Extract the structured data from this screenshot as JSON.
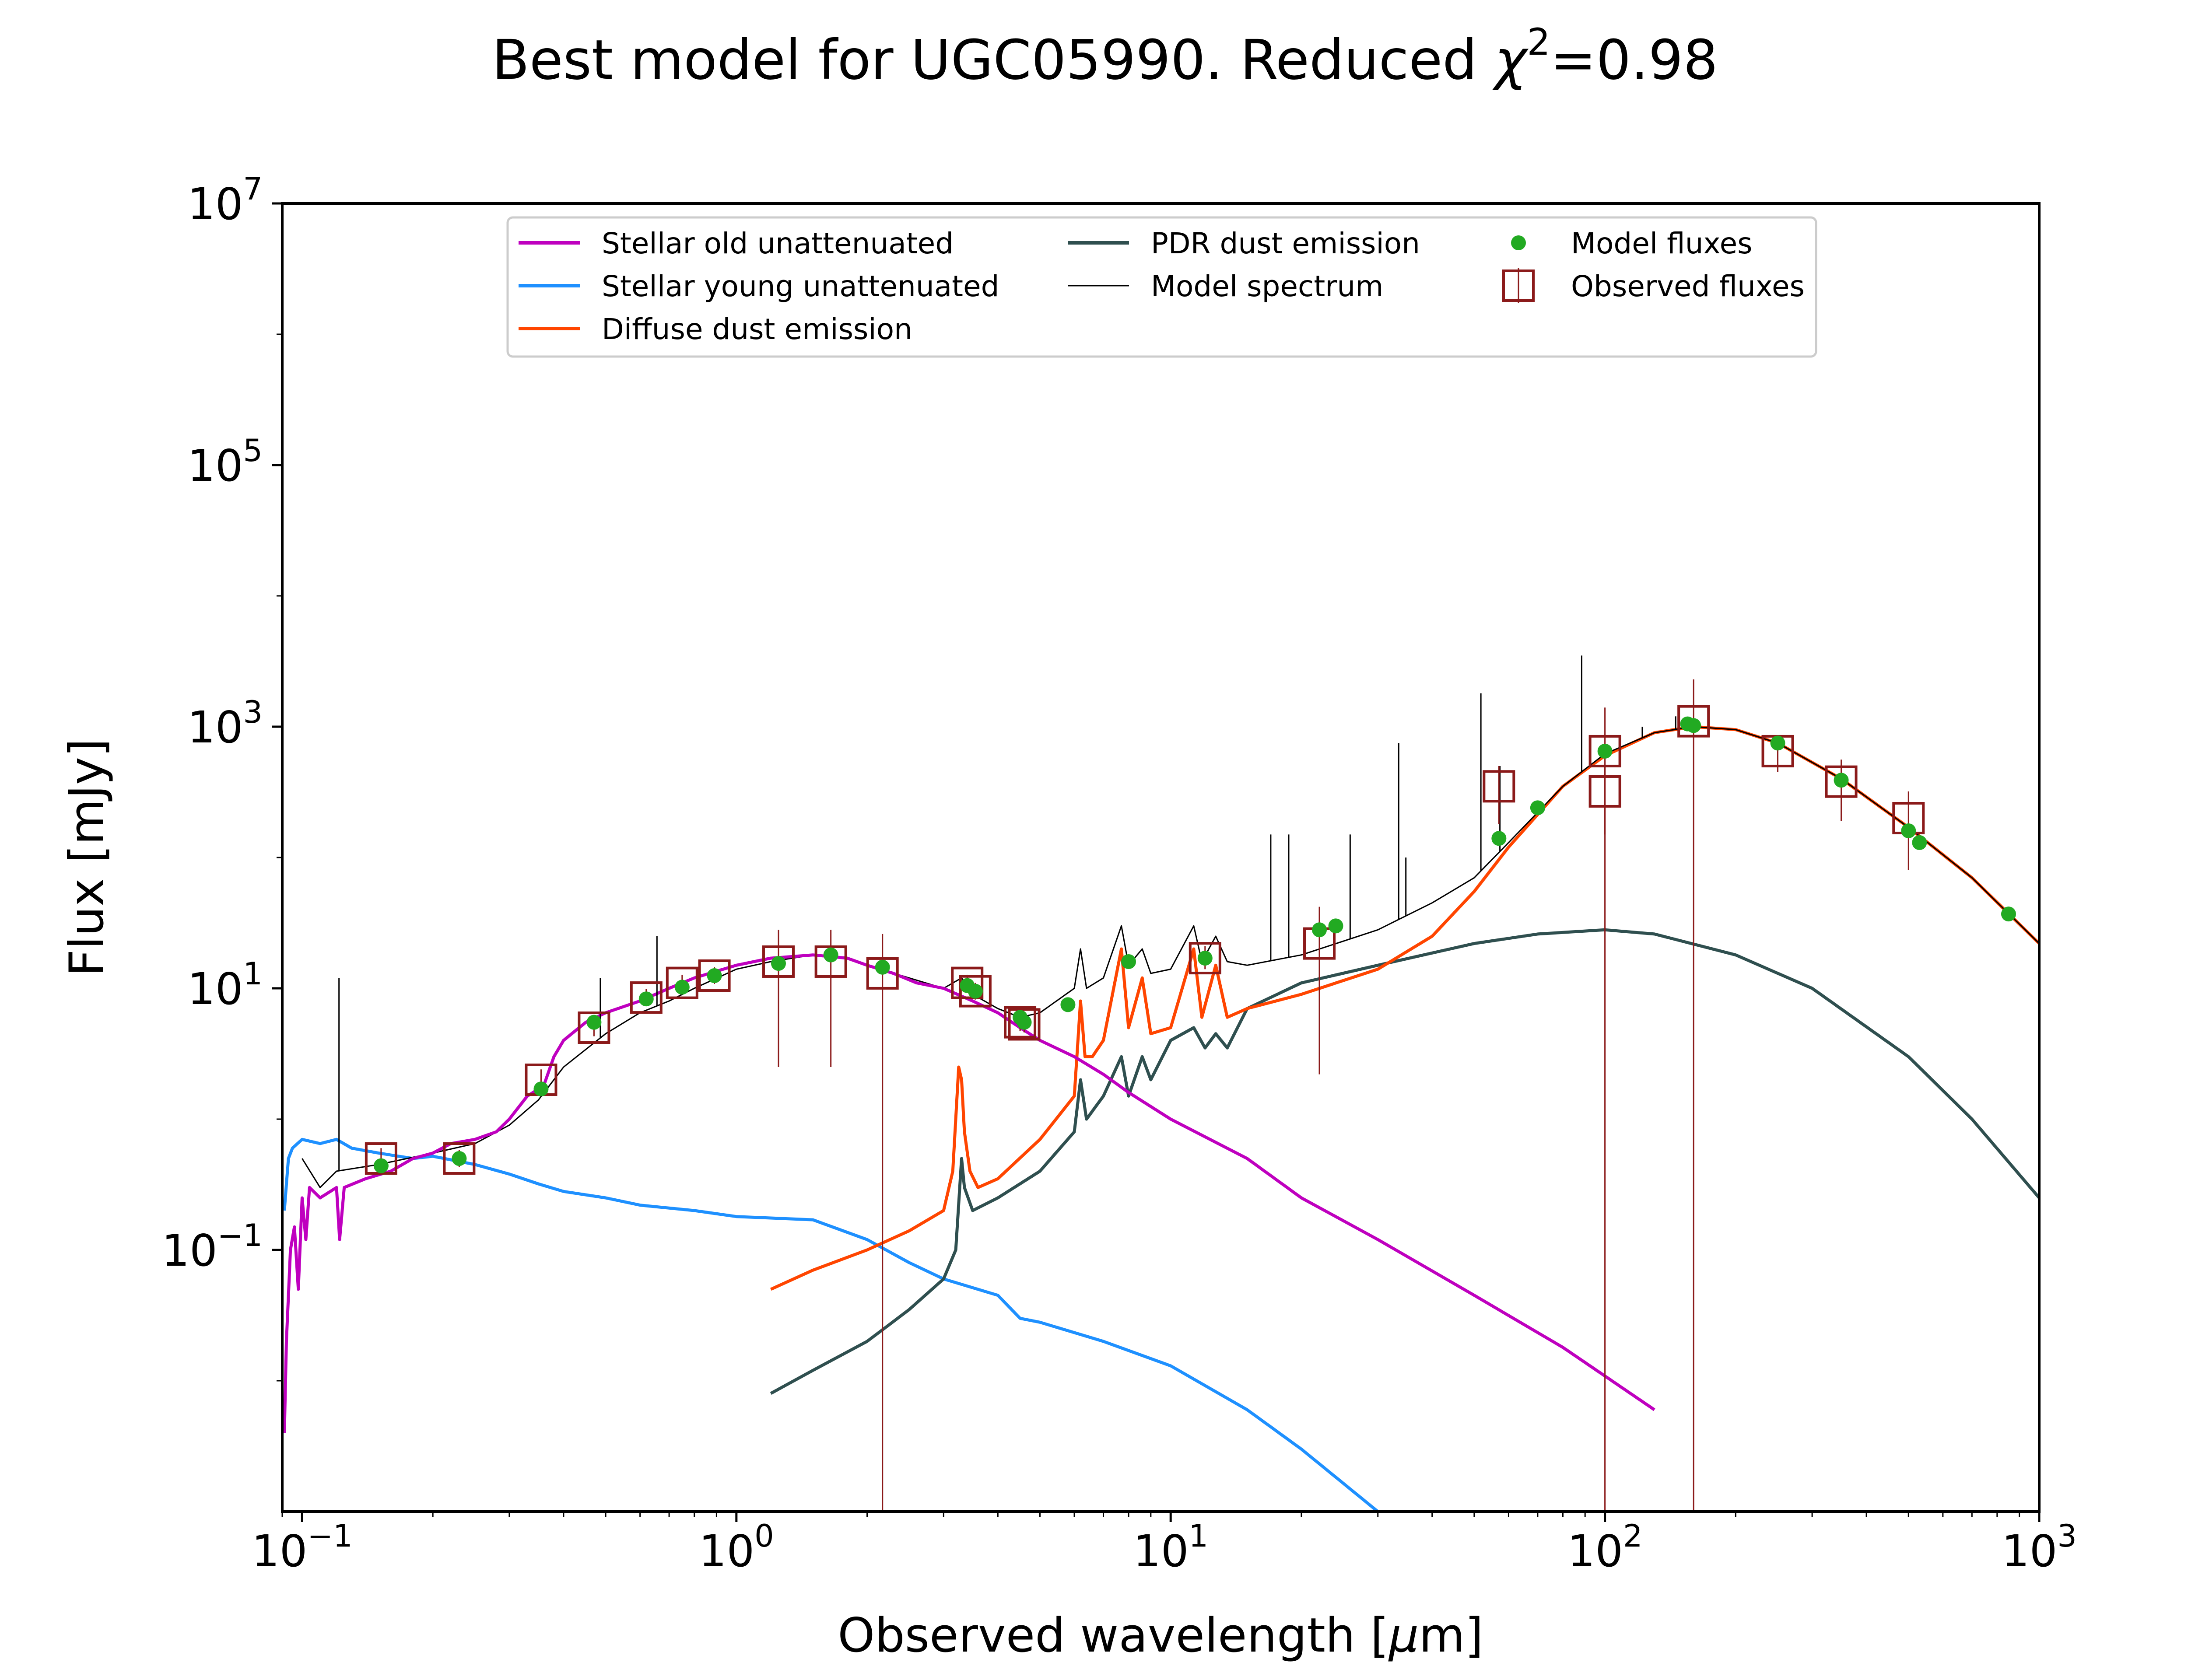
{
  "chart_data": {
    "type": "line",
    "title": "Best model for UGC05990. Reduced χ²=0.98",
    "title_main": "Best model for UGC05990. Reduced ",
    "title_chi": "χ",
    "title_sup": "2",
    "title_tail": "=0.98",
    "xlabel_pre": "Observed wavelength [",
    "xlabel_mu": "μ",
    "xlabel_post": "m]",
    "ylabel": "Flux [mJy]",
    "xscale": "log",
    "yscale": "log",
    "xlim": [
      0.09,
      1000
    ],
    "ylim": [
      0.001,
      10000000
    ],
    "grid": false,
    "legend_position": "top-center",
    "x_ticks": [
      {
        "value": 0.1,
        "base": "10",
        "exp": "−1"
      },
      {
        "value": 1,
        "base": "10",
        "exp": "0"
      },
      {
        "value": 10,
        "base": "10",
        "exp": "1"
      },
      {
        "value": 100,
        "base": "10",
        "exp": "2"
      },
      {
        "value": 1000,
        "base": "10",
        "exp": "3"
      }
    ],
    "y_ticks": [
      {
        "value": 0.1,
        "base": "10",
        "exp": "−1"
      },
      {
        "value": 10,
        "base": "10",
        "exp": "1"
      },
      {
        "value": 1000,
        "base": "10",
        "exp": "3"
      },
      {
        "value": 100000,
        "base": "10",
        "exp": "5"
      },
      {
        "value": 10000000,
        "base": "10",
        "exp": "7"
      }
    ],
    "legend": [
      {
        "label": "Stellar old unattenuated",
        "kind": "line",
        "color": "#bf00bf"
      },
      {
        "label": "Stellar young unattenuated",
        "kind": "line",
        "color": "#1e90ff"
      },
      {
        "label": "Diffuse dust emission",
        "kind": "line",
        "color": "#ff4500"
      },
      {
        "label": "PDR dust emission",
        "kind": "line",
        "color": "#2f4f4f"
      },
      {
        "label": "Model spectrum",
        "kind": "thinline",
        "color": "#000000"
      },
      {
        "label": "Model fluxes",
        "kind": "dot",
        "color": "#22aa22"
      },
      {
        "label": "Observed fluxes",
        "kind": "box",
        "color": "#8b1a1a"
      }
    ],
    "series": [
      {
        "name": "Stellar old unattenuated",
        "color": "#bf00bf",
        "points": [
          [
            0.091,
            0.004
          ],
          [
            0.092,
            0.02
          ],
          [
            0.094,
            0.1
          ],
          [
            0.096,
            0.15
          ],
          [
            0.098,
            0.05
          ],
          [
            0.1,
            0.25
          ],
          [
            0.102,
            0.12
          ],
          [
            0.104,
            0.3
          ],
          [
            0.11,
            0.25
          ],
          [
            0.12,
            0.3
          ],
          [
            0.122,
            0.12
          ],
          [
            0.125,
            0.3
          ],
          [
            0.14,
            0.35
          ],
          [
            0.16,
            0.4
          ],
          [
            0.18,
            0.5
          ],
          [
            0.2,
            0.55
          ],
          [
            0.22,
            0.65
          ],
          [
            0.25,
            0.7
          ],
          [
            0.28,
            0.8
          ],
          [
            0.3,
            1.0
          ],
          [
            0.33,
            1.5
          ],
          [
            0.36,
            1.8
          ],
          [
            0.38,
            3.0
          ],
          [
            0.4,
            4.0
          ],
          [
            0.45,
            5.5
          ],
          [
            0.5,
            6.5
          ],
          [
            0.6,
            8.0
          ],
          [
            0.7,
            10.0
          ],
          [
            0.8,
            12.0
          ],
          [
            1.0,
            15.0
          ],
          [
            1.2,
            17.0
          ],
          [
            1.5,
            18.0
          ],
          [
            1.8,
            17.0
          ],
          [
            2.0,
            15.0
          ],
          [
            2.3,
            13.0
          ],
          [
            2.6,
            11.0
          ],
          [
            3.0,
            10.0
          ],
          [
            3.5,
            8.0
          ],
          [
            4.0,
            6.5
          ],
          [
            4.5,
            5.0
          ],
          [
            5.0,
            4.0
          ],
          [
            6.0,
            3.0
          ],
          [
            7.0,
            2.2
          ],
          [
            8.0,
            1.6
          ],
          [
            10.0,
            1.0
          ],
          [
            15.0,
            0.5
          ],
          [
            20.0,
            0.25
          ],
          [
            30.0,
            0.12
          ],
          [
            50.0,
            0.045
          ],
          [
            80.0,
            0.018
          ],
          [
            130.0,
            0.006
          ]
        ]
      },
      {
        "name": "Stellar young unattenuated",
        "color": "#1e90ff",
        "points": [
          [
            0.091,
            0.2
          ],
          [
            0.093,
            0.5
          ],
          [
            0.095,
            0.6
          ],
          [
            0.1,
            0.7
          ],
          [
            0.11,
            0.65
          ],
          [
            0.12,
            0.7
          ],
          [
            0.13,
            0.6
          ],
          [
            0.15,
            0.55
          ],
          [
            0.18,
            0.5
          ],
          [
            0.2,
            0.52
          ],
          [
            0.25,
            0.45
          ],
          [
            0.3,
            0.38
          ],
          [
            0.35,
            0.32
          ],
          [
            0.4,
            0.28
          ],
          [
            0.5,
            0.25
          ],
          [
            0.6,
            0.22
          ],
          [
            0.8,
            0.2
          ],
          [
            1.0,
            0.18
          ],
          [
            1.5,
            0.17
          ],
          [
            2.0,
            0.12
          ],
          [
            2.5,
            0.08
          ],
          [
            3.0,
            0.06
          ],
          [
            4.0,
            0.045
          ],
          [
            4.5,
            0.03
          ],
          [
            5.0,
            0.028
          ],
          [
            7.0,
            0.02
          ],
          [
            10.0,
            0.013
          ],
          [
            15.0,
            0.006
          ],
          [
            20.0,
            0.003
          ],
          [
            30.0,
            0.001
          ]
        ]
      },
      {
        "name": "Diffuse dust emission",
        "color": "#ff4500",
        "points": [
          [
            1.2,
            0.05
          ],
          [
            1.5,
            0.07
          ],
          [
            2.0,
            0.1
          ],
          [
            2.5,
            0.14
          ],
          [
            3.0,
            0.2
          ],
          [
            3.15,
            0.4
          ],
          [
            3.25,
            2.5
          ],
          [
            3.3,
            2.0
          ],
          [
            3.35,
            0.8
          ],
          [
            3.45,
            0.4
          ],
          [
            3.6,
            0.3
          ],
          [
            4.0,
            0.35
          ],
          [
            5.0,
            0.7
          ],
          [
            6.0,
            1.5
          ],
          [
            6.2,
            8.0
          ],
          [
            6.35,
            3.0
          ],
          [
            6.6,
            3.0
          ],
          [
            7.0,
            4.0
          ],
          [
            7.7,
            20.0
          ],
          [
            8.0,
            5.0
          ],
          [
            8.6,
            12.0
          ],
          [
            9.0,
            4.5
          ],
          [
            10.0,
            5.0
          ],
          [
            11.3,
            20.0
          ],
          [
            11.8,
            6.0
          ],
          [
            12.7,
            15.0
          ],
          [
            13.5,
            6.0
          ],
          [
            15.0,
            7.0
          ],
          [
            20.0,
            9.0
          ],
          [
            30.0,
            14.0
          ],
          [
            40.0,
            25.0
          ],
          [
            50.0,
            55.0
          ],
          [
            60.0,
            120.0
          ],
          [
            80.0,
            350.0
          ],
          [
            100.0,
            600.0
          ],
          [
            130.0,
            900.0
          ],
          [
            160.0,
            1000.0
          ],
          [
            200.0,
            950.0
          ],
          [
            250.0,
            750.0
          ],
          [
            350.0,
            400.0
          ],
          [
            500.0,
            170.0
          ],
          [
            700.0,
            70.0
          ],
          [
            1000.0,
            22.0
          ]
        ]
      },
      {
        "name": "PDR dust emission",
        "color": "#2f4f4f",
        "points": [
          [
            1.2,
            0.008
          ],
          [
            1.5,
            0.012
          ],
          [
            2.0,
            0.02
          ],
          [
            2.5,
            0.035
          ],
          [
            3.0,
            0.06
          ],
          [
            3.2,
            0.1
          ],
          [
            3.3,
            0.5
          ],
          [
            3.35,
            0.3
          ],
          [
            3.5,
            0.2
          ],
          [
            4.0,
            0.25
          ],
          [
            5.0,
            0.4
          ],
          [
            6.0,
            0.8
          ],
          [
            6.2,
            2.0
          ],
          [
            6.4,
            1.0
          ],
          [
            7.0,
            1.5
          ],
          [
            7.7,
            3.0
          ],
          [
            8.0,
            1.5
          ],
          [
            8.6,
            3.0
          ],
          [
            9.0,
            2.0
          ],
          [
            10.0,
            4.0
          ],
          [
            11.3,
            5.0
          ],
          [
            12.0,
            3.5
          ],
          [
            12.7,
            4.5
          ],
          [
            13.5,
            3.5
          ],
          [
            15.0,
            7.0
          ],
          [
            20.0,
            11.0
          ],
          [
            30.0,
            15.0
          ],
          [
            50.0,
            22.0
          ],
          [
            70.0,
            26.0
          ],
          [
            100.0,
            28.0
          ],
          [
            130.0,
            26.0
          ],
          [
            200.0,
            18.0
          ],
          [
            300.0,
            10.0
          ],
          [
            500.0,
            3.0
          ],
          [
            700.0,
            1.0
          ],
          [
            1000.0,
            0.25
          ]
        ]
      },
      {
        "name": "Model spectrum",
        "color": "#000000",
        "points": [
          [
            0.1,
            0.5
          ],
          [
            0.11,
            0.3
          ],
          [
            0.12,
            0.4
          ],
          [
            0.15,
            0.45
          ],
          [
            0.2,
            0.55
          ],
          [
            0.25,
            0.65
          ],
          [
            0.3,
            0.9
          ],
          [
            0.35,
            1.4
          ],
          [
            0.4,
            2.5
          ],
          [
            0.5,
            4.5
          ],
          [
            0.6,
            6.5
          ],
          [
            0.7,
            8.0
          ],
          [
            0.8,
            10.0
          ],
          [
            1.0,
            14.0
          ],
          [
            1.2,
            16.0
          ],
          [
            1.5,
            18.0
          ],
          [
            1.8,
            17.0
          ],
          [
            2.0,
            15.0
          ],
          [
            2.5,
            12.0
          ],
          [
            3.0,
            10.0
          ],
          [
            3.3,
            12.0
          ],
          [
            3.5,
            9.0
          ],
          [
            4.0,
            7.0
          ],
          [
            4.5,
            6.0
          ],
          [
            5.0,
            6.5
          ],
          [
            6.0,
            10.0
          ],
          [
            6.2,
            20.0
          ],
          [
            6.4,
            10.0
          ],
          [
            7.0,
            12.0
          ],
          [
            7.7,
            30.0
          ],
          [
            8.0,
            15.0
          ],
          [
            8.6,
            20.0
          ],
          [
            9.0,
            13.0
          ],
          [
            10.0,
            14.0
          ],
          [
            11.3,
            30.0
          ],
          [
            11.8,
            16.0
          ],
          [
            12.7,
            25.0
          ],
          [
            13.5,
            16.0
          ],
          [
            15.0,
            15.0
          ],
          [
            20.0,
            18.0
          ],
          [
            30.0,
            28.0
          ],
          [
            40.0,
            45.0
          ],
          [
            50.0,
            70.0
          ],
          [
            60.0,
            130.0
          ],
          [
            80.0,
            350.0
          ],
          [
            100.0,
            620.0
          ],
          [
            130.0,
            900.0
          ],
          [
            160.0,
            1000.0
          ],
          [
            200.0,
            950.0
          ],
          [
            250.0,
            750.0
          ],
          [
            350.0,
            400.0
          ],
          [
            500.0,
            170.0
          ],
          [
            700.0,
            70.0
          ],
          [
            1000.0,
            22.0
          ]
        ]
      }
    ],
    "emission_lines": [
      {
        "x": 0.1216,
        "y_top": 12
      },
      {
        "x": 0.4861,
        "y_top": 12
      },
      {
        "x": 0.6563,
        "y_top": 25
      },
      {
        "x": 17.0,
        "y_top": 150
      },
      {
        "x": 18.7,
        "y_top": 150
      },
      {
        "x": 25.9,
        "y_top": 150
      },
      {
        "x": 33.5,
        "y_top": 750
      },
      {
        "x": 34.8,
        "y_top": 100
      },
      {
        "x": 51.8,
        "y_top": 1800
      },
      {
        "x": 57.3,
        "y_top": 500
      },
      {
        "x": 88.4,
        "y_top": 3500
      },
      {
        "x": 121.9,
        "y_top": 1000
      },
      {
        "x": 145.5,
        "y_top": 1200
      },
      {
        "x": 157.7,
        "y_top": 1100
      }
    ],
    "model_fluxes": [
      [
        0.152,
        0.44
      ],
      [
        0.23,
        0.5
      ],
      [
        0.355,
        1.7
      ],
      [
        0.47,
        5.5
      ],
      [
        0.62,
        8.3
      ],
      [
        0.75,
        10.2
      ],
      [
        0.89,
        12.5
      ],
      [
        1.25,
        15.5
      ],
      [
        1.65,
        18.0
      ],
      [
        2.17,
        14.5
      ],
      [
        3.4,
        10.5
      ],
      [
        3.55,
        9.5
      ],
      [
        4.5,
        6.0
      ],
      [
        4.6,
        5.5
      ],
      [
        5.8,
        7.5
      ],
      [
        8.0,
        16.0
      ],
      [
        12.0,
        17.0
      ],
      [
        22.0,
        28.0
      ],
      [
        24.0,
        30.0
      ],
      [
        57.0,
        140.0
      ],
      [
        70.0,
        240.0
      ],
      [
        100.0,
        650.0
      ],
      [
        155.0,
        1050.0
      ],
      [
        160.0,
        1020.0
      ],
      [
        250.0,
        750.0
      ],
      [
        350.0,
        390.0
      ],
      [
        500.0,
        160.0
      ],
      [
        530.0,
        130.0
      ],
      [
        850.0,
        37.0
      ]
    ],
    "observed_fluxes": [
      {
        "x": 0.152,
        "y": 0.5,
        "ylo": 0.42,
        "yhi": 0.6
      },
      {
        "x": 0.23,
        "y": 0.5,
        "ylo": 0.43,
        "yhi": 0.58
      },
      {
        "x": 0.355,
        "y": 2.0,
        "ylo": 1.7,
        "yhi": 2.4
      },
      {
        "x": 0.47,
        "y": 5.0,
        "ylo": 4.3,
        "yhi": 5.8
      },
      {
        "x": 0.62,
        "y": 8.5,
        "ylo": 7.3,
        "yhi": 9.9
      },
      {
        "x": 0.75,
        "y": 11.0,
        "ylo": 9.5,
        "yhi": 12.7
      },
      {
        "x": 0.89,
        "y": 12.5,
        "ylo": 10.8,
        "yhi": 14.5
      },
      {
        "x": 1.25,
        "y": 16.0,
        "ylo": 2.5,
        "yhi": 28.0
      },
      {
        "x": 1.65,
        "y": 16.0,
        "ylo": 2.5,
        "yhi": 28.0
      },
      {
        "x": 2.17,
        "y": 13.0,
        "ylo": 0.001,
        "yhi": 26.0
      },
      {
        "x": 3.4,
        "y": 11.0,
        "ylo": 9.5,
        "yhi": 12.7
      },
      {
        "x": 3.55,
        "y": 9.5,
        "ylo": 8.2,
        "yhi": 11.0
      },
      {
        "x": 4.5,
        "y": 5.5,
        "ylo": 4.7,
        "yhi": 6.4
      },
      {
        "x": 4.6,
        "y": 5.3,
        "ylo": 4.6,
        "yhi": 6.1
      },
      {
        "x": 12.0,
        "y": 17.0,
        "ylo": 14.0,
        "yhi": 21.0
      },
      {
        "x": 22.0,
        "y": 22.0,
        "ylo": 2.2,
        "yhi": 42.0
      },
      {
        "x": 57.0,
        "y": 350.0,
        "ylo": 180.0,
        "yhi": 500.0
      },
      {
        "x": 100.0,
        "y": 650.0,
        "ylo": 0.001,
        "yhi": 1400.0
      },
      {
        "x": 100.0,
        "y": 320.0,
        "ylo": 150.0,
        "yhi": 500.0
      },
      {
        "x": 160.0,
        "y": 1100.0,
        "ylo": 0.001,
        "yhi": 2300.0
      },
      {
        "x": 250.0,
        "y": 650.0,
        "ylo": 450.0,
        "yhi": 850.0
      },
      {
        "x": 350.0,
        "y": 380.0,
        "ylo": 190.0,
        "yhi": 560.0
      },
      {
        "x": 500.0,
        "y": 200.0,
        "ylo": 80.0,
        "yhi": 320.0
      }
    ]
  }
}
